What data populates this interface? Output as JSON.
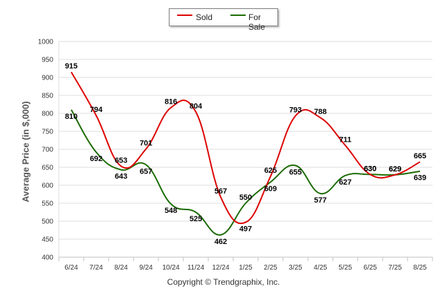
{
  "chart_data": {
    "type": "line",
    "categories": [
      "6/24",
      "7/24",
      "8/24",
      "9/24",
      "10/24",
      "11/24",
      "12/24",
      "1/25",
      "2/25",
      "3/25",
      "4/25",
      "5/25",
      "6/25",
      "7/25",
      "8/25"
    ],
    "series": [
      {
        "name": "Sold",
        "color": "#dd0000",
        "values": [
          915,
          794,
          653,
          701,
          816,
          804,
          567,
          497,
          625,
          793,
          788,
          711,
          630,
          629,
          665
        ]
      },
      {
        "name": "For Sale",
        "color": "#1a6b00",
        "values": [
          810,
          692,
          643,
          657,
          548,
          525,
          462,
          550,
          609,
          655,
          577,
          627,
          630,
          629,
          639
        ]
      }
    ],
    "ylabel": "Average Price (in $,000)",
    "xlabel": "",
    "ylim": [
      400,
      1000
    ],
    "yticks": [
      400,
      450,
      500,
      550,
      600,
      650,
      700,
      750,
      800,
      850,
      900,
      950,
      1000
    ],
    "grid": true,
    "legend_placement": "top-center",
    "footer": "Copyright © Trendgraphix, Inc."
  }
}
